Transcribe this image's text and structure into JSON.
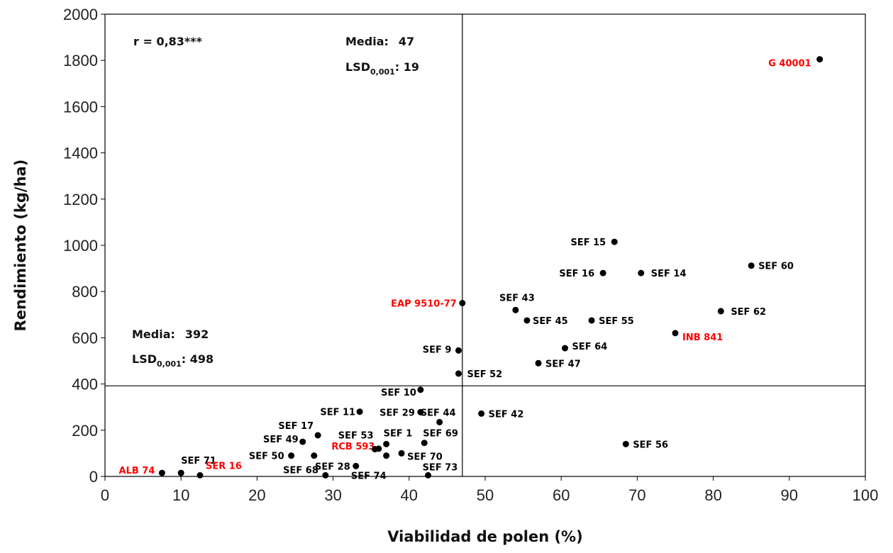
{
  "chart_data": {
    "type": "scatter",
    "title": "",
    "xlabel": "Viabilidad de polen (%)",
    "ylabel": "Rendimiento (kg/ha)",
    "xlim": [
      0,
      100
    ],
    "ylim": [
      0,
      2000
    ],
    "xticks": [
      "0",
      "10",
      "20",
      "30",
      "40",
      "50",
      "60",
      "70",
      "80",
      "90",
      "100"
    ],
    "yticks": [
      "0",
      "200",
      "400",
      "600",
      "800",
      "1000",
      "1200",
      "1400",
      "1600",
      "1800",
      "2000"
    ],
    "grid": false,
    "reference_lines": {
      "x_mean": 47,
      "y_mean": 392
    },
    "annotations": {
      "correlation": "r = 0,83***",
      "x_mean_label": "Media:",
      "x_mean_value": "47",
      "x_lsd_label": "LSD",
      "x_lsd_sub": "0,001",
      "x_lsd_value": ": 19",
      "y_mean_label": "Media:",
      "y_mean_value": "392",
      "y_lsd_label": "LSD",
      "y_lsd_sub": "0,001",
      "y_lsd_value": ": 498"
    },
    "colors": {
      "marker": "#000000",
      "label": "#000000",
      "highlight": "#ff0000",
      "axis": "#000000"
    },
    "points": [
      {
        "label": "G 40001",
        "x": 94,
        "y": 1805,
        "highlight": true
      },
      {
        "label": "SEF 15",
        "x": 67,
        "y": 1015,
        "highlight": false
      },
      {
        "label": "SEF 60",
        "x": 85,
        "y": 912,
        "highlight": false
      },
      {
        "label": "SEF 16",
        "x": 65.5,
        "y": 880,
        "highlight": false
      },
      {
        "label": "SEF 14",
        "x": 70.5,
        "y": 880,
        "highlight": false
      },
      {
        "label": "EAP 9510-77",
        "x": 47,
        "y": 750,
        "highlight": true
      },
      {
        "label": "SEF 43",
        "x": 54,
        "y": 720,
        "highlight": false
      },
      {
        "label": "SEF 62",
        "x": 81,
        "y": 715,
        "highlight": false
      },
      {
        "label": "SEF 45",
        "x": 55.5,
        "y": 675,
        "highlight": false
      },
      {
        "label": "SEF 55",
        "x": 64,
        "y": 675,
        "highlight": false
      },
      {
        "label": "INB 841",
        "x": 75,
        "y": 620,
        "highlight": true
      },
      {
        "label": "SEF 64",
        "x": 60.5,
        "y": 555,
        "highlight": false
      },
      {
        "label": "SEF 9",
        "x": 46.5,
        "y": 545,
        "highlight": false
      },
      {
        "label": "SEF 47",
        "x": 57,
        "y": 490,
        "highlight": false
      },
      {
        "label": "SEF 52",
        "x": 46.5,
        "y": 445,
        "highlight": false
      },
      {
        "label": "SEF 10",
        "x": 41.5,
        "y": 375,
        "highlight": false
      },
      {
        "label": "SEF 11",
        "x": 33.5,
        "y": 280,
        "highlight": false
      },
      {
        "label": "SEF 29",
        "x": 41.5,
        "y": 278,
        "highlight": false
      },
      {
        "label": "SEF 42",
        "x": 49.5,
        "y": 272,
        "highlight": false
      },
      {
        "label": "SEF 44",
        "x": 44,
        "y": 235,
        "highlight": false
      },
      {
        "label": "SEF 17",
        "x": 28,
        "y": 178,
        "highlight": false
      },
      {
        "label": "SEF 49",
        "x": 26,
        "y": 150,
        "highlight": false
      },
      {
        "label": "SEF 69",
        "x": 42,
        "y": 145,
        "highlight": false
      },
      {
        "label": "SEF 1",
        "x": 37,
        "y": 140,
        "highlight": false
      },
      {
        "label": "SEF 56",
        "x": 68.5,
        "y": 140,
        "highlight": false
      },
      {
        "label": "RCB 593",
        "x": 36,
        "y": 120,
        "highlight": true
      },
      {
        "label": "SEF 53",
        "x": 35.5,
        "y": 118,
        "highlight": false
      },
      {
        "label": "SEF 70",
        "x": 39,
        "y": 100,
        "highlight": false
      },
      {
        "label": "SEF 50",
        "x": 24.5,
        "y": 90,
        "highlight": false
      },
      {
        "label": "SEF 74",
        "x": 37,
        "y": 90,
        "highlight": false
      },
      {
        "label": "SEF 28",
        "x": 33,
        "y": 45,
        "highlight": false
      },
      {
        "label": "ALB 74",
        "x": 7.5,
        "y": 15,
        "highlight": true
      },
      {
        "label": "SEF 71",
        "x": 10,
        "y": 15,
        "highlight": false
      },
      {
        "label": "SER 16",
        "x": 12.5,
        "y": 5,
        "highlight": true
      },
      {
        "label": "SEF 68",
        "x": 29,
        "y": 5,
        "highlight": false
      },
      {
        "label": "SEF 73",
        "x": 42.5,
        "y": 5,
        "highlight": false
      },
      {
        "label": "",
        "x": 27.5,
        "y": 90,
        "highlight": false
      }
    ]
  }
}
